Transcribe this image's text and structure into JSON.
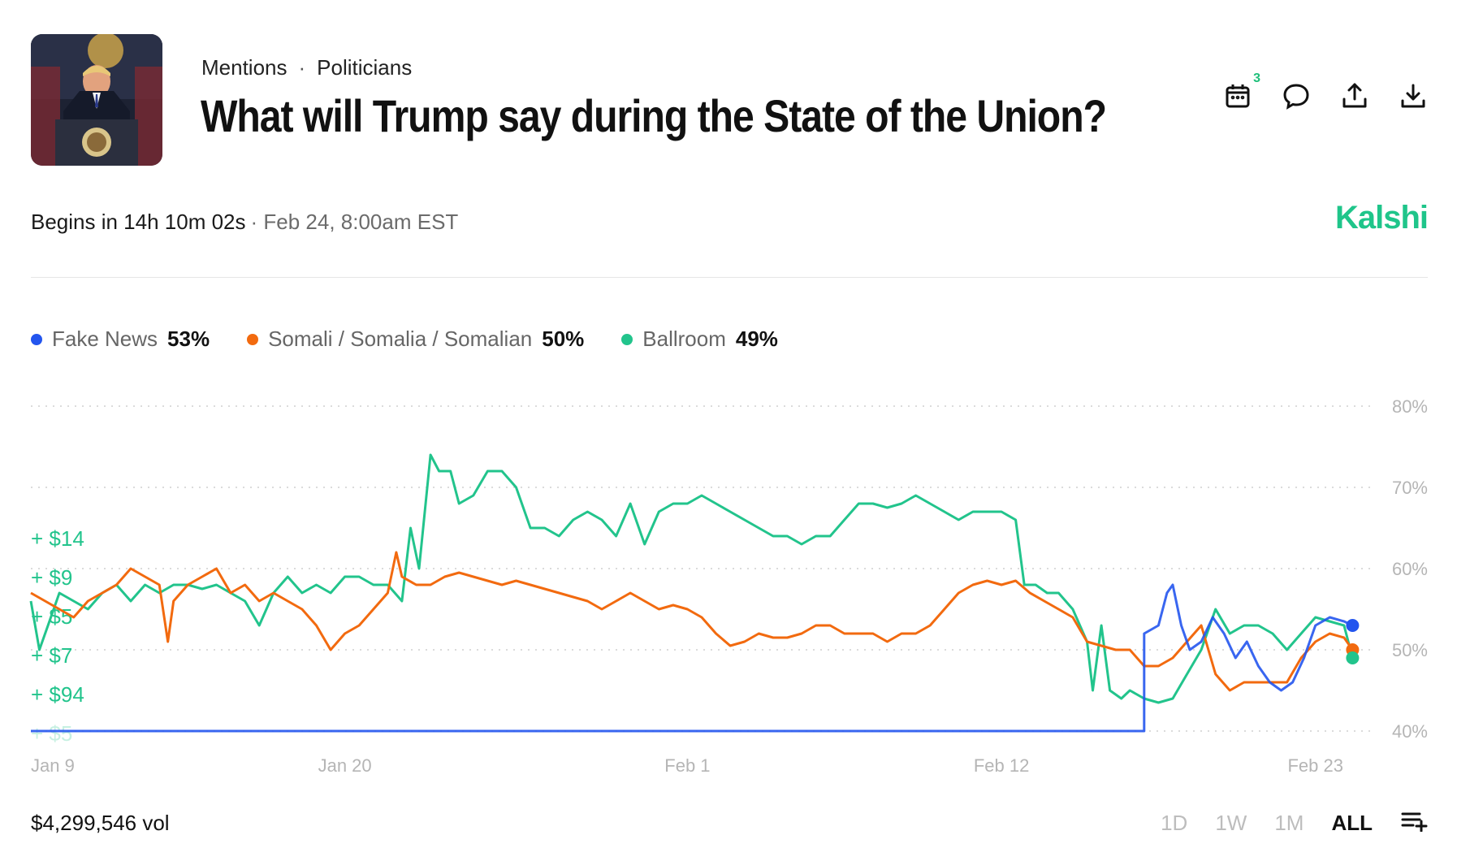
{
  "header": {
    "breadcrumb": [
      "Mentions",
      "Politicians"
    ],
    "separator": "·",
    "title": "What will Trump say during the State of the Union?",
    "calendar_badge": "3"
  },
  "icons": [
    "calendar-icon",
    "comment-icon",
    "share-icon",
    "download-icon",
    "list-add-icon"
  ],
  "status": {
    "begins": "Begins in 14h 10m 02s",
    "when": "· Feb 24, 8:00am EST"
  },
  "brand": {
    "name": "Kalshi",
    "color": "#1fc58a"
  },
  "legend": [
    {
      "name": "Fake News",
      "value": "53%",
      "color": "#2355ee"
    },
    {
      "name": "Somali / Somalia / Somalian",
      "value": "50%",
      "color": "#f26a0f"
    },
    {
      "name": "Ballroom",
      "value": "49%",
      "color": "#22c48c"
    }
  ],
  "footer": {
    "volume": "$4,299,546 vol",
    "ranges": [
      "1D",
      "1W",
      "1M",
      "ALL"
    ],
    "active_range": "ALL"
  },
  "chart_data": {
    "type": "line",
    "ylim": [
      38,
      82
    ],
    "yticks": [
      40,
      50,
      60,
      70,
      80
    ],
    "ytick_labels": [
      "40%",
      "50%",
      "60%",
      "70%",
      "80%"
    ],
    "grid": true,
    "x_tick_labels": [
      {
        "day": 1,
        "label": "Jan 9"
      },
      {
        "day": 12,
        "label": "Jan 20"
      },
      {
        "day": 24,
        "label": "Feb 1"
      },
      {
        "day": 35,
        "label": "Feb 12"
      },
      {
        "day": 46,
        "label": "Feb 23"
      }
    ],
    "x_range": [
      1,
      48
    ],
    "trade_labels": [
      "+ $14",
      "+ $9",
      "+ $5",
      "+ $7",
      "+ $94",
      "+ $5"
    ],
    "series": [
      {
        "name": "Fake News",
        "color": "#2355ee",
        "end_value": 53,
        "points": [
          [
            1,
            40
          ],
          [
            40,
            40
          ],
          [
            40,
            52
          ],
          [
            40.5,
            53
          ],
          [
            40.8,
            57
          ],
          [
            41,
            58
          ],
          [
            41.3,
            53
          ],
          [
            41.6,
            50
          ],
          [
            42,
            51
          ],
          [
            42.4,
            54
          ],
          [
            42.8,
            52
          ],
          [
            43.2,
            49
          ],
          [
            43.6,
            51
          ],
          [
            44,
            48
          ],
          [
            44.4,
            46
          ],
          [
            44.8,
            45
          ],
          [
            45.2,
            46
          ],
          [
            45.6,
            49
          ],
          [
            46,
            53
          ],
          [
            46.5,
            54
          ],
          [
            47,
            53.5
          ],
          [
            47.3,
            53
          ]
        ]
      },
      {
        "name": "Somali / Somalia / Somalian",
        "color": "#f26a0f",
        "end_value": 50,
        "points": [
          [
            1,
            57
          ],
          [
            1.5,
            56
          ],
          [
            2,
            55
          ],
          [
            2.5,
            54
          ],
          [
            3,
            56
          ],
          [
            3.5,
            57
          ],
          [
            4,
            58
          ],
          [
            4.5,
            60
          ],
          [
            5,
            59
          ],
          [
            5.5,
            58
          ],
          [
            5.8,
            51
          ],
          [
            6,
            56
          ],
          [
            6.5,
            58
          ],
          [
            7,
            59
          ],
          [
            7.5,
            60
          ],
          [
            8,
            57
          ],
          [
            8.5,
            58
          ],
          [
            9,
            56
          ],
          [
            9.5,
            57
          ],
          [
            10,
            56
          ],
          [
            10.5,
            55
          ],
          [
            11,
            53
          ],
          [
            11.5,
            50
          ],
          [
            12,
            52
          ],
          [
            12.5,
            53
          ],
          [
            13,
            55
          ],
          [
            13.5,
            57
          ],
          [
            13.8,
            62
          ],
          [
            14,
            59
          ],
          [
            14.5,
            58
          ],
          [
            15,
            58
          ],
          [
            15.5,
            59
          ],
          [
            16,
            59.5
          ],
          [
            16.5,
            59
          ],
          [
            17,
            58.5
          ],
          [
            17.5,
            58
          ],
          [
            18,
            58.5
          ],
          [
            18.5,
            58
          ],
          [
            19,
            57.5
          ],
          [
            19.5,
            57
          ],
          [
            20,
            56.5
          ],
          [
            20.5,
            56
          ],
          [
            21,
            55
          ],
          [
            21.5,
            56
          ],
          [
            22,
            57
          ],
          [
            22.5,
            56
          ],
          [
            23,
            55
          ],
          [
            23.5,
            55.5
          ],
          [
            24,
            55
          ],
          [
            24.5,
            54
          ],
          [
            25,
            52
          ],
          [
            25.5,
            50.5
          ],
          [
            26,
            51
          ],
          [
            26.5,
            52
          ],
          [
            27,
            51.5
          ],
          [
            27.5,
            51.5
          ],
          [
            28,
            52
          ],
          [
            28.5,
            53
          ],
          [
            29,
            53
          ],
          [
            29.5,
            52
          ],
          [
            30,
            52
          ],
          [
            30.5,
            52
          ],
          [
            31,
            51
          ],
          [
            31.5,
            52
          ],
          [
            32,
            52
          ],
          [
            32.5,
            53
          ],
          [
            33,
            55
          ],
          [
            33.5,
            57
          ],
          [
            34,
            58
          ],
          [
            34.5,
            58.5
          ],
          [
            35,
            58
          ],
          [
            35.5,
            58.5
          ],
          [
            36,
            57
          ],
          [
            36.5,
            56
          ],
          [
            37,
            55
          ],
          [
            37.5,
            54
          ],
          [
            38,
            51
          ],
          [
            38.5,
            50.5
          ],
          [
            39,
            50
          ],
          [
            39.5,
            50
          ],
          [
            40,
            48
          ],
          [
            40.5,
            48
          ],
          [
            41,
            49
          ],
          [
            41.5,
            51
          ],
          [
            42,
            53
          ],
          [
            42.5,
            47
          ],
          [
            43,
            45
          ],
          [
            43.5,
            46
          ],
          [
            44,
            46
          ],
          [
            44.5,
            46
          ],
          [
            45,
            46
          ],
          [
            45.5,
            49
          ],
          [
            46,
            51
          ],
          [
            46.5,
            52
          ],
          [
            47,
            51.5
          ],
          [
            47.3,
            50
          ]
        ]
      },
      {
        "name": "Ballroom",
        "color": "#22c48c",
        "end_value": 49,
        "points": [
          [
            1,
            56
          ],
          [
            1.3,
            50
          ],
          [
            1.6,
            53
          ],
          [
            2,
            57
          ],
          [
            2.5,
            56
          ],
          [
            3,
            55
          ],
          [
            3.5,
            57
          ],
          [
            4,
            58
          ],
          [
            4.5,
            56
          ],
          [
            5,
            58
          ],
          [
            5.5,
            57
          ],
          [
            6,
            58
          ],
          [
            6.5,
            58
          ],
          [
            7,
            57.5
          ],
          [
            7.5,
            58
          ],
          [
            8,
            57
          ],
          [
            8.5,
            56
          ],
          [
            9,
            53
          ],
          [
            9.5,
            57
          ],
          [
            10,
            59
          ],
          [
            10.5,
            57
          ],
          [
            11,
            58
          ],
          [
            11.5,
            57
          ],
          [
            12,
            59
          ],
          [
            12.5,
            59
          ],
          [
            13,
            58
          ],
          [
            13.5,
            58
          ],
          [
            14,
            56
          ],
          [
            14.3,
            65
          ],
          [
            14.6,
            60
          ],
          [
            15,
            74
          ],
          [
            15.3,
            72
          ],
          [
            15.7,
            72
          ],
          [
            16,
            68
          ],
          [
            16.5,
            69
          ],
          [
            17,
            72
          ],
          [
            17.5,
            72
          ],
          [
            18,
            70
          ],
          [
            18.5,
            65
          ],
          [
            19,
            65
          ],
          [
            19.5,
            64
          ],
          [
            20,
            66
          ],
          [
            20.5,
            67
          ],
          [
            21,
            66
          ],
          [
            21.5,
            64
          ],
          [
            22,
            68
          ],
          [
            22.5,
            63
          ],
          [
            23,
            67
          ],
          [
            23.5,
            68
          ],
          [
            24,
            68
          ],
          [
            24.5,
            69
          ],
          [
            25,
            68
          ],
          [
            25.5,
            67
          ],
          [
            26,
            66
          ],
          [
            26.5,
            65
          ],
          [
            27,
            64
          ],
          [
            27.5,
            64
          ],
          [
            28,
            63
          ],
          [
            28.5,
            64
          ],
          [
            29,
            64
          ],
          [
            29.5,
            66
          ],
          [
            30,
            68
          ],
          [
            30.5,
            68
          ],
          [
            31,
            67.5
          ],
          [
            31.5,
            68
          ],
          [
            32,
            69
          ],
          [
            32.5,
            68
          ],
          [
            33,
            67
          ],
          [
            33.5,
            66
          ],
          [
            34,
            67
          ],
          [
            34.5,
            67
          ],
          [
            35,
            67
          ],
          [
            35.5,
            66
          ],
          [
            35.8,
            58
          ],
          [
            36.2,
            58
          ],
          [
            36.6,
            57
          ],
          [
            37,
            57
          ],
          [
            37.5,
            55
          ],
          [
            38,
            51
          ],
          [
            38.2,
            45
          ],
          [
            38.5,
            53
          ],
          [
            38.8,
            45
          ],
          [
            39.2,
            44
          ],
          [
            39.5,
            45
          ],
          [
            40,
            44
          ],
          [
            40.5,
            43.5
          ],
          [
            41,
            44
          ],
          [
            41.5,
            47
          ],
          [
            42,
            50
          ],
          [
            42.5,
            55
          ],
          [
            43,
            52
          ],
          [
            43.5,
            53
          ],
          [
            44,
            53
          ],
          [
            44.5,
            52
          ],
          [
            45,
            50
          ],
          [
            45.5,
            52
          ],
          [
            46,
            54
          ],
          [
            46.5,
            53.5
          ],
          [
            47,
            53
          ],
          [
            47.3,
            49
          ]
        ]
      }
    ]
  }
}
